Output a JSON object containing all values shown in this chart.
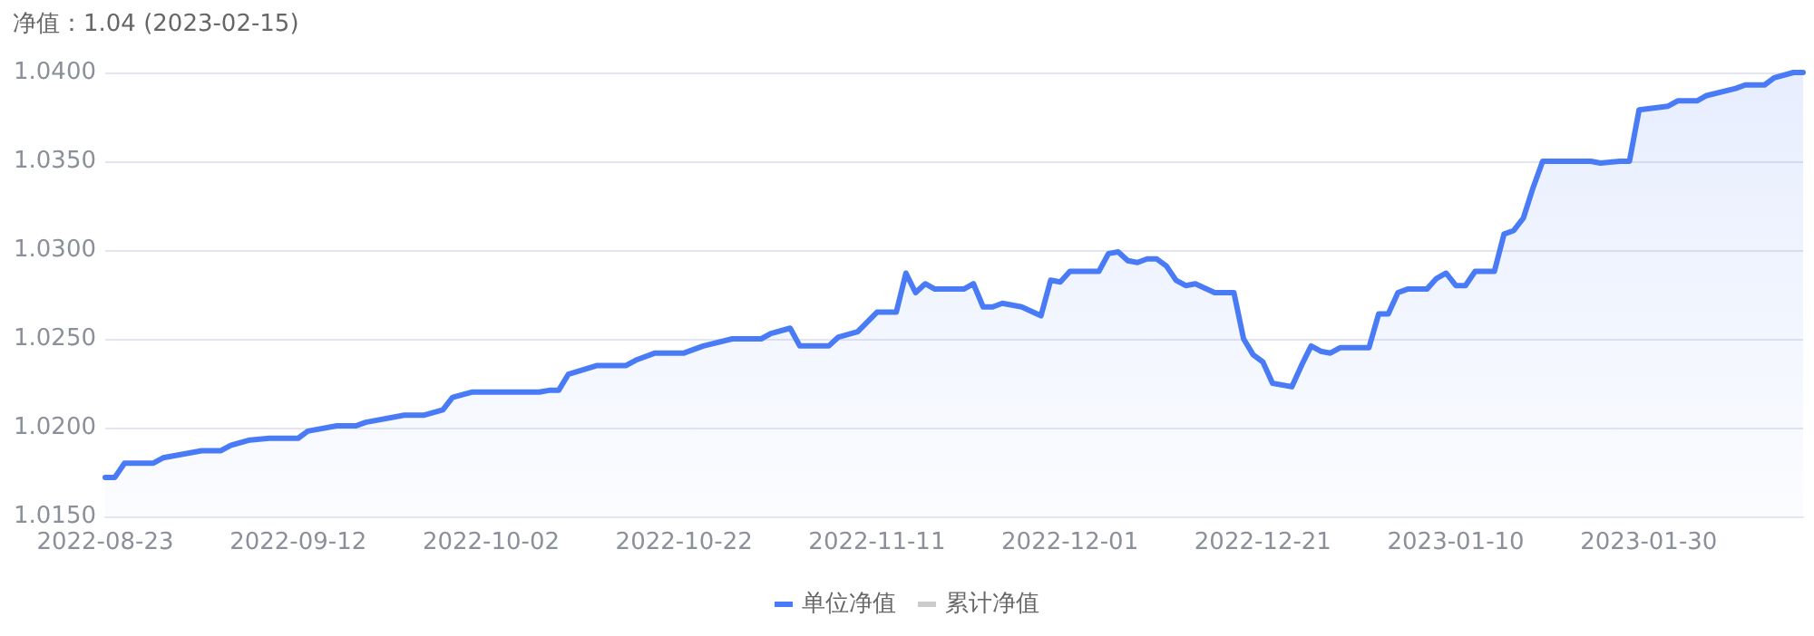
{
  "chart_data": {
    "type": "area",
    "title": "净值：1.04 (2023-02-15)",
    "x": [
      "2022-08-23",
      "2022-08-24",
      "2022-08-25",
      "2022-08-28",
      "2022-08-29",
      "2022-09-02",
      "2022-09-04",
      "2022-09-05",
      "2022-09-07",
      "2022-09-09",
      "2022-09-12",
      "2022-09-13",
      "2022-09-16",
      "2022-09-18",
      "2022-09-19",
      "2022-09-23",
      "2022-09-25",
      "2022-09-27",
      "2022-09-28",
      "2022-09-30",
      "2022-10-07",
      "2022-10-08",
      "2022-10-09",
      "2022-10-10",
      "2022-10-13",
      "2022-10-16",
      "2022-10-17",
      "2022-10-19",
      "2022-10-22",
      "2022-10-24",
      "2022-10-27",
      "2022-10-30",
      "2022-10-31",
      "2022-11-02",
      "2022-11-03",
      "2022-11-06",
      "2022-11-07",
      "2022-11-09",
      "2022-11-11",
      "2022-11-13",
      "2022-11-14",
      "2022-11-15",
      "2022-11-16",
      "2022-11-17",
      "2022-11-20",
      "2022-11-21",
      "2022-11-22",
      "2022-11-23",
      "2022-11-24",
      "2022-11-26",
      "2022-11-28",
      "2022-11-29",
      "2022-11-30",
      "2022-12-01",
      "2022-12-04",
      "2022-12-05",
      "2022-12-06",
      "2022-12-07",
      "2022-12-08",
      "2022-12-09",
      "2022-12-10",
      "2022-12-11",
      "2022-12-12",
      "2022-12-13",
      "2022-12-14",
      "2022-12-16",
      "2022-12-18",
      "2022-12-19",
      "2022-12-20",
      "2022-12-21",
      "2022-12-22",
      "2022-12-24",
      "2022-12-25",
      "2022-12-26",
      "2022-12-27",
      "2022-12-28",
      "2022-12-29",
      "2023-01-01",
      "2023-01-02",
      "2023-01-03",
      "2023-01-04",
      "2023-01-05",
      "2023-01-07",
      "2023-01-08",
      "2023-01-09",
      "2023-01-10",
      "2023-01-11",
      "2023-01-12",
      "2023-01-14",
      "2023-01-15",
      "2023-01-16",
      "2023-01-17",
      "2023-01-18",
      "2023-01-19",
      "2023-01-24",
      "2023-01-25",
      "2023-01-27",
      "2023-01-28",
      "2023-01-29",
      "2023-02-01",
      "2023-02-02",
      "2023-02-04",
      "2023-02-05",
      "2023-02-08",
      "2023-02-09",
      "2023-02-11",
      "2023-02-12",
      "2023-02-14",
      "2023-02-15"
    ],
    "series": [
      {
        "name": "单位净值",
        "color": "#4a7bf7",
        "values": [
          1.0172,
          1.0172,
          1.018,
          1.018,
          1.0183,
          1.0187,
          1.0187,
          1.019,
          1.0193,
          1.0194,
          1.0194,
          1.0198,
          1.0201,
          1.0201,
          1.0203,
          1.0207,
          1.0207,
          1.021,
          1.0217,
          1.022,
          1.022,
          1.0221,
          1.0221,
          1.023,
          1.0235,
          1.0235,
          1.0238,
          1.0242,
          1.0242,
          1.0246,
          1.025,
          1.025,
          1.0253,
          1.0256,
          1.0246,
          1.0246,
          1.0251,
          1.0254,
          1.0265,
          1.0265,
          1.0287,
          1.0276,
          1.0281,
          1.0278,
          1.0278,
          1.0281,
          1.0268,
          1.0268,
          1.027,
          1.0268,
          1.0263,
          1.0283,
          1.0282,
          1.0288,
          1.0288,
          1.0298,
          1.0299,
          1.0294,
          1.0293,
          1.0295,
          1.0295,
          1.0291,
          1.0283,
          1.028,
          1.0281,
          1.0276,
          1.0276,
          1.025,
          1.0241,
          1.0237,
          1.0225,
          1.0223,
          1.0235,
          1.0246,
          1.0243,
          1.0242,
          1.0245,
          1.0245,
          1.0264,
          1.0264,
          1.0276,
          1.0278,
          1.0278,
          1.0284,
          1.0287,
          1.028,
          1.028,
          1.0288,
          1.0288,
          1.0309,
          1.0311,
          1.0318,
          1.0335,
          1.035,
          1.035,
          1.0349,
          1.035,
          1.035,
          1.0379,
          1.0381,
          1.0384,
          1.0384,
          1.0387,
          1.0391,
          1.0393,
          1.0393,
          1.0397,
          1.04,
          1.04
        ]
      },
      {
        "name": "累计净值",
        "color": "#cccccc",
        "values": [
          null,
          null,
          null,
          null,
          null,
          null,
          null,
          null,
          null,
          null,
          null,
          null,
          null,
          null,
          null,
          null,
          null,
          null,
          null,
          null,
          null,
          null,
          null,
          null,
          null,
          null,
          null,
          null,
          null,
          null,
          null,
          null,
          null,
          null,
          null,
          null,
          null,
          null,
          null,
          null,
          null,
          null,
          null,
          null,
          null,
          null,
          null,
          null,
          null,
          null,
          null,
          null,
          null,
          null,
          null,
          null,
          null,
          null,
          null,
          null,
          null,
          null,
          null,
          null,
          null,
          null,
          null,
          null,
          null,
          null,
          null,
          null,
          null,
          null,
          null,
          null,
          null,
          null,
          null,
          null,
          null,
          null,
          null,
          null,
          null,
          null,
          null,
          null,
          null,
          null,
          null,
          null,
          null,
          null,
          null,
          null,
          null,
          null,
          null,
          null,
          null,
          null,
          null,
          null,
          null,
          null,
          null,
          null,
          null
        ]
      }
    ],
    "xlim": [
      "2022-08-23",
      "2023-02-15"
    ],
    "xticks": [
      "2022-08-23",
      "2022-09-12",
      "2022-10-02",
      "2022-10-22",
      "2022-11-11",
      "2022-12-01",
      "2022-12-21",
      "2023-01-10",
      "2023-01-30"
    ],
    "ylim": [
      1.015,
      1.04
    ],
    "yticks": [
      {
        "value": 1.015,
        "label": "1.0150"
      },
      {
        "value": 1.02,
        "label": "1.0200"
      },
      {
        "value": 1.025,
        "label": "1.0250"
      },
      {
        "value": 1.03,
        "label": "1.0300"
      },
      {
        "value": 1.035,
        "label": "1.0350"
      },
      {
        "value": 1.04,
        "label": "1.0400"
      }
    ],
    "grid": "y",
    "legend": "bottom",
    "marker": "none",
    "line_style": "solid"
  }
}
